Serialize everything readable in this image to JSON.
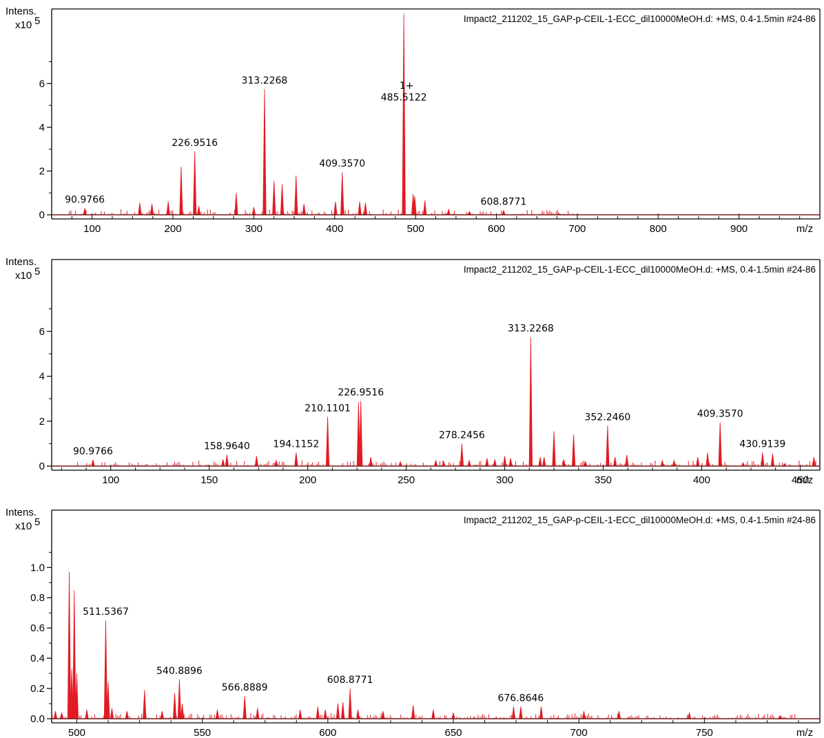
{
  "chart_data": [
    {
      "type": "bar",
      "header": "Impact2_211202_15_GAP-p-CEIL-1-ECC_dil10000MeOH.d: +MS, 0.4-1.5min #24-86",
      "ylabel": "Intens.",
      "yscale_label": "x10",
      "yscale_exp": "5",
      "xlabel": "m/z",
      "xlim": [
        50,
        1000
      ],
      "ylim": [
        0,
        9.0
      ],
      "x_ticks": [
        100,
        200,
        300,
        400,
        500,
        600,
        700,
        800,
        900
      ],
      "y_ticks": [
        0,
        2,
        4,
        6
      ],
      "y_decimals": 0,
      "peaks": [
        {
          "x": 90.9766,
          "y": 0.3,
          "label": "90.9766"
        },
        {
          "x": 158.964,
          "y": 0.55
        },
        {
          "x": 174.0,
          "y": 0.5
        },
        {
          "x": 194.1152,
          "y": 0.6
        },
        {
          "x": 210.1101,
          "y": 2.2
        },
        {
          "x": 226.9516,
          "y": 2.9,
          "label": "226.9516"
        },
        {
          "x": 232.0,
          "y": 0.4
        },
        {
          "x": 278.2456,
          "y": 1.0
        },
        {
          "x": 300.0,
          "y": 0.35
        },
        {
          "x": 313.2268,
          "y": 5.75,
          "label": "313.2268"
        },
        {
          "x": 325.0,
          "y": 1.55
        },
        {
          "x": 335.0,
          "y": 1.4
        },
        {
          "x": 352.246,
          "y": 1.8
        },
        {
          "x": 362.0,
          "y": 0.5
        },
        {
          "x": 401.0,
          "y": 0.6
        },
        {
          "x": 409.357,
          "y": 1.95,
          "label": "409.3570"
        },
        {
          "x": 430.9139,
          "y": 0.6
        },
        {
          "x": 438.0,
          "y": 0.55
        },
        {
          "x": 485.5122,
          "y": 9.2,
          "label": "485.5122",
          "charge": "1+"
        },
        {
          "x": 497.0,
          "y": 0.95
        },
        {
          "x": 499.0,
          "y": 0.85
        },
        {
          "x": 511.5367,
          "y": 0.65
        },
        {
          "x": 540.8896,
          "y": 0.25
        },
        {
          "x": 566.8889,
          "y": 0.15
        },
        {
          "x": 608.8771,
          "y": 0.2,
          "label": "608.8771"
        },
        {
          "x": 676.8646,
          "y": 0.08
        }
      ]
    },
    {
      "type": "bar",
      "header": "Impact2_211202_15_GAP-p-CEIL-1-ECC_dil10000MeOH.d: +MS, 0.4-1.5min #24-86",
      "ylabel": "Intens.",
      "yscale_label": "x10",
      "yscale_exp": "5",
      "xlabel": "m/z",
      "xlim": [
        70,
        460
      ],
      "ylim": [
        0,
        8.8
      ],
      "x_ticks": [
        100,
        150,
        200,
        250,
        300,
        350,
        400,
        450
      ],
      "y_ticks": [
        0,
        2,
        4,
        6
      ],
      "y_decimals": 0,
      "peaks": [
        {
          "x": 90.9766,
          "y": 0.28,
          "label": "90.9766"
        },
        {
          "x": 157.0,
          "y": 0.3
        },
        {
          "x": 158.964,
          "y": 0.5,
          "label": "158.9640"
        },
        {
          "x": 174.0,
          "y": 0.45
        },
        {
          "x": 184.0,
          "y": 0.25
        },
        {
          "x": 194.1152,
          "y": 0.6,
          "label": "194.1152"
        },
        {
          "x": 210.1101,
          "y": 2.2,
          "label": "210.1101"
        },
        {
          "x": 225.8,
          "y": 2.85
        },
        {
          "x": 226.9516,
          "y": 2.9,
          "label": "226.9516"
        },
        {
          "x": 232.0,
          "y": 0.4
        },
        {
          "x": 247.0,
          "y": 0.2
        },
        {
          "x": 265.0,
          "y": 0.25
        },
        {
          "x": 269.0,
          "y": 0.2
        },
        {
          "x": 278.2456,
          "y": 1.0,
          "label": "278.2456"
        },
        {
          "x": 282.0,
          "y": 0.25
        },
        {
          "x": 291.0,
          "y": 0.35
        },
        {
          "x": 295.0,
          "y": 0.3
        },
        {
          "x": 300.0,
          "y": 0.45
        },
        {
          "x": 303.0,
          "y": 0.35
        },
        {
          "x": 313.2268,
          "y": 5.75,
          "label": "313.2268"
        },
        {
          "x": 318.0,
          "y": 0.4
        },
        {
          "x": 320.0,
          "y": 0.4
        },
        {
          "x": 325.0,
          "y": 1.55
        },
        {
          "x": 330.0,
          "y": 0.3
        },
        {
          "x": 335.0,
          "y": 1.4
        },
        {
          "x": 341.0,
          "y": 0.2
        },
        {
          "x": 352.246,
          "y": 1.8,
          "label": "352.2460"
        },
        {
          "x": 356.0,
          "y": 0.4
        },
        {
          "x": 362.0,
          "y": 0.5
        },
        {
          "x": 380.0,
          "y": 0.25
        },
        {
          "x": 386.0,
          "y": 0.25
        },
        {
          "x": 398.0,
          "y": 0.4
        },
        {
          "x": 403.0,
          "y": 0.6
        },
        {
          "x": 409.357,
          "y": 1.95,
          "label": "409.3570"
        },
        {
          "x": 421.0,
          "y": 0.15
        },
        {
          "x": 430.9139,
          "y": 0.6,
          "label": "430.9139"
        },
        {
          "x": 436.0,
          "y": 0.55
        },
        {
          "x": 442.0,
          "y": 0.1
        },
        {
          "x": 457.0,
          "y": 0.4
        }
      ]
    },
    {
      "type": "bar",
      "header": "Impact2_211202_15_GAP-p-CEIL-1-ECC_dil10000MeOH.d: +MS, 0.4-1.5min #24-86",
      "ylabel": "Intens.",
      "yscale_label": "x10",
      "yscale_exp": "5",
      "xlabel": "m/z",
      "xlim": [
        490,
        796
      ],
      "ylim": [
        0,
        1.32
      ],
      "x_ticks": [
        500,
        550,
        600,
        650,
        700,
        750
      ],
      "y_ticks": [
        0.0,
        0.2,
        0.4,
        0.6,
        0.8,
        1.0
      ],
      "y_decimals": 1,
      "peaks": [
        {
          "x": 491.5,
          "y": 0.05
        },
        {
          "x": 494.0,
          "y": 0.04
        },
        {
          "x": 497.0,
          "y": 0.97
        },
        {
          "x": 498.0,
          "y": 0.33
        },
        {
          "x": 499.0,
          "y": 0.85
        },
        {
          "x": 500.0,
          "y": 0.3
        },
        {
          "x": 504.0,
          "y": 0.06
        },
        {
          "x": 511.5367,
          "y": 0.65,
          "label": "511.5367"
        },
        {
          "x": 512.5,
          "y": 0.24
        },
        {
          "x": 514.0,
          "y": 0.07
        },
        {
          "x": 520.0,
          "y": 0.05
        },
        {
          "x": 527.0,
          "y": 0.19
        },
        {
          "x": 534.0,
          "y": 0.05
        },
        {
          "x": 539.0,
          "y": 0.17
        },
        {
          "x": 540.8896,
          "y": 0.26,
          "label": "540.8896"
        },
        {
          "x": 542.0,
          "y": 0.1
        },
        {
          "x": 556.0,
          "y": 0.06
        },
        {
          "x": 566.8889,
          "y": 0.15,
          "label": "566.8889"
        },
        {
          "x": 572.0,
          "y": 0.07
        },
        {
          "x": 589.0,
          "y": 0.06
        },
        {
          "x": 596.0,
          "y": 0.08
        },
        {
          "x": 599.0,
          "y": 0.06
        },
        {
          "x": 604.0,
          "y": 0.1
        },
        {
          "x": 606.0,
          "y": 0.11
        },
        {
          "x": 608.8771,
          "y": 0.2,
          "label": "608.8771"
        },
        {
          "x": 612.0,
          "y": 0.06
        },
        {
          "x": 622.0,
          "y": 0.05
        },
        {
          "x": 634.0,
          "y": 0.09
        },
        {
          "x": 642.0,
          "y": 0.06
        },
        {
          "x": 650.0,
          "y": 0.04
        },
        {
          "x": 674.0,
          "y": 0.08
        },
        {
          "x": 676.8646,
          "y": 0.08,
          "label": "676.8646"
        },
        {
          "x": 685.0,
          "y": 0.08
        },
        {
          "x": 702.0,
          "y": 0.05
        },
        {
          "x": 716.0,
          "y": 0.05
        },
        {
          "x": 744.0,
          "y": 0.04
        },
        {
          "x": 780.0,
          "y": 0.02
        }
      ]
    }
  ],
  "colors": {
    "spectrum": "#e21b23",
    "axis": "#000000",
    "baseline": "#7a1a1a"
  }
}
